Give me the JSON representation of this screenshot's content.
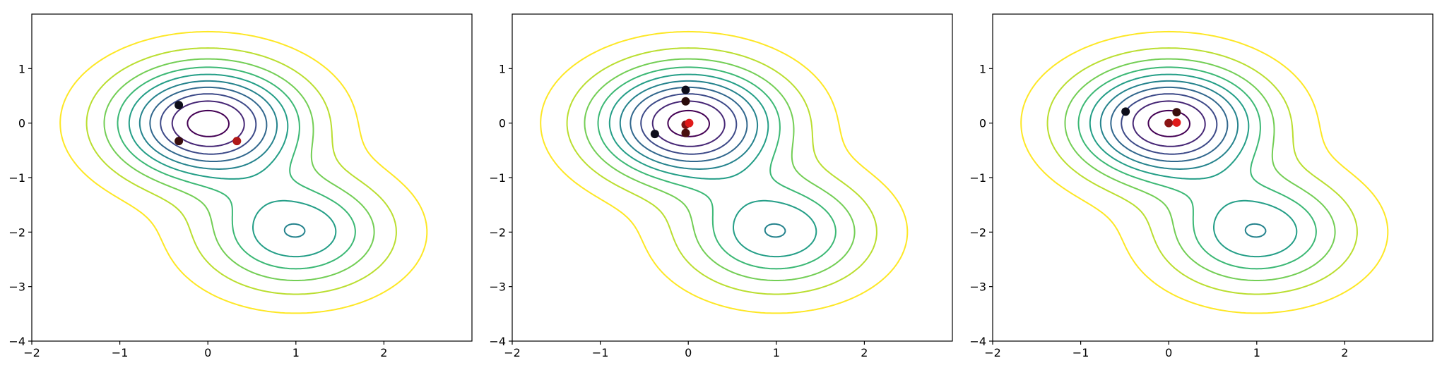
{
  "chart_data": [
    {
      "type": "contour",
      "title": "",
      "xlabel": "",
      "ylabel": "",
      "xlim": [
        -2,
        3
      ],
      "ylim": [
        -4,
        2
      ],
      "xticks": [
        "−2",
        "−1",
        "0",
        "1",
        "2"
      ],
      "yticks": [
        "−4",
        "−3",
        "−2",
        "−1",
        "0",
        "1"
      ],
      "grid": false,
      "contour_colormap": "viridis",
      "points": [
        {
          "x": -0.33,
          "y": 0.33,
          "color": "#0d0d1a"
        },
        {
          "x": -0.33,
          "y": -0.33,
          "color": "#3a0e0e"
        },
        {
          "x": 0.33,
          "y": -0.33,
          "color": "#b01818"
        }
      ]
    },
    {
      "type": "contour",
      "title": "",
      "xlabel": "",
      "ylabel": "",
      "xlim": [
        -2,
        3
      ],
      "ylim": [
        -4,
        2
      ],
      "xticks": [
        "−2",
        "−1",
        "0",
        "1",
        "2"
      ],
      "yticks": [
        "−4",
        "−3",
        "−2",
        "−1",
        "0",
        "1"
      ],
      "grid": false,
      "contour_colormap": "viridis",
      "points": [
        {
          "x": -0.38,
          "y": -0.2,
          "color": "#0d0d1a"
        },
        {
          "x": -0.03,
          "y": 0.61,
          "color": "#0d0d1a"
        },
        {
          "x": -0.03,
          "y": 0.4,
          "color": "#2a0a0a"
        },
        {
          "x": -0.03,
          "y": -0.18,
          "color": "#4a1010"
        },
        {
          "x": -0.03,
          "y": -0.03,
          "color": "#7a1414"
        },
        {
          "x": 0.01,
          "y": 0.0,
          "color": "#e01a1a"
        }
      ]
    },
    {
      "type": "contour",
      "title": "",
      "xlabel": "",
      "ylabel": "",
      "xlim": [
        -2,
        3
      ],
      "ylim": [
        -4,
        2
      ],
      "xticks": [
        "−2",
        "−1",
        "0",
        "1",
        "2"
      ],
      "yticks": [
        "−4",
        "−3",
        "−2",
        "−1",
        "0",
        "1"
      ],
      "grid": false,
      "contour_colormap": "viridis",
      "points": [
        {
          "x": -0.49,
          "y": 0.21,
          "color": "#0d0d1a"
        },
        {
          "x": 0.09,
          "y": 0.2,
          "color": "#3a0e0e"
        },
        {
          "x": 0.0,
          "y": 0.0,
          "color": "#8a1414"
        },
        {
          "x": 0.09,
          "y": 0.01,
          "color": "#e01a1a"
        }
      ]
    }
  ]
}
